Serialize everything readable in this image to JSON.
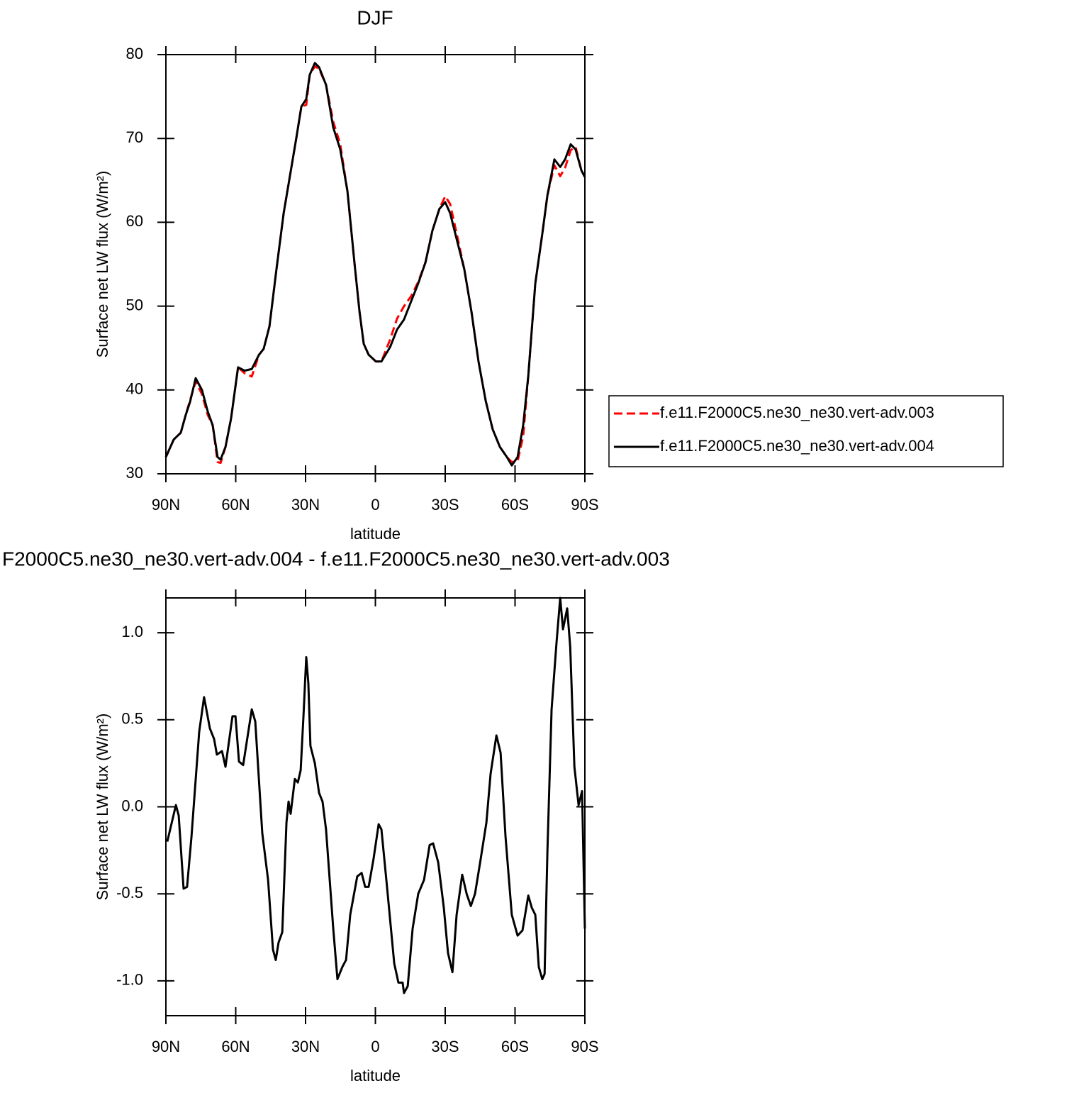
{
  "chart_data": [
    {
      "type": "line",
      "title": "DJF",
      "xlabel": "latitude",
      "ylabel": "Surface net LW flux (W/m²)",
      "x": [
        90,
        86.6,
        83.6,
        81.5,
        79.6,
        77.2,
        74.5,
        72,
        69.9,
        67.8,
        66.5,
        64.4,
        62,
        59,
        56.2,
        53.1,
        50,
        48,
        45.5,
        42.5,
        39.4,
        36.3,
        34,
        31.8,
        29.7,
        28.2,
        26,
        24.2,
        21.2,
        18.1,
        15.1,
        12,
        9,
        6.8,
        5,
        2.9,
        -0.2,
        -2.6,
        -6.3,
        -9.3,
        -12.3,
        -15.4,
        -18.4,
        -21.5,
        -24.5,
        -27.5,
        -30,
        -32.1,
        -35.2,
        -38.2,
        -41.3,
        -44.3,
        -47.4,
        -50.4,
        -53.5,
        -56.5,
        -58.6,
        -61.1,
        -63.5,
        -65.7,
        -68.7,
        -71.7,
        -73.9,
        -76.9,
        -79.4,
        -81.5,
        -83.9,
        -86,
        -88.5,
        -90
      ],
      "series": [
        {
          "name": "f.e11.F2000C5.ne30_ne30.vert-adv.003",
          "color": "#ff0000",
          "linestyle": "dashed",
          "values": [
            32.0,
            34.1,
            34.9,
            37.0,
            38.8,
            41.0,
            39.5,
            37.0,
            35.8,
            31.4,
            31.3,
            33.2,
            36.6,
            42.7,
            42.0,
            41.6,
            44.2,
            44.9,
            47.6,
            54.4,
            61.1,
            66.2,
            70.0,
            73.8,
            74.0,
            77.6,
            78.6,
            78.3,
            76.4,
            72.0,
            69.3,
            63.7,
            55.2,
            49.3,
            45.5,
            44.2,
            43.4,
            43.4,
            46.0,
            48.5,
            50.0,
            51.2,
            52.9,
            55.2,
            59.0,
            61.6,
            63.1,
            62.2,
            58.3,
            54.4,
            49.3,
            43.4,
            38.7,
            35.3,
            33.2,
            32.0,
            31.4,
            31.5,
            34.5,
            41.7,
            52.7,
            58.6,
            63.2,
            66.8,
            65.5,
            66.5,
            68.6,
            69.0,
            66.2,
            65.4
          ]
        },
        {
          "name": "f.e11.F2000C5.ne30_ne30.vert-adv.004",
          "color": "#000000",
          "linestyle": "solid",
          "values": [
            32.0,
            34.1,
            34.9,
            37.0,
            38.6,
            41.4,
            40.0,
            37.4,
            35.8,
            32.0,
            31.7,
            33.2,
            36.6,
            42.7,
            42.3,
            42.5,
            44.2,
            44.9,
            47.6,
            54.4,
            61.1,
            66.2,
            70.0,
            73.8,
            74.7,
            77.6,
            79.0,
            78.5,
            76.4,
            71.3,
            68.7,
            63.7,
            55.2,
            49.3,
            45.5,
            44.2,
            43.4,
            43.4,
            45.1,
            47.2,
            48.4,
            50.6,
            52.7,
            55.2,
            59.0,
            61.6,
            62.4,
            61.1,
            57.7,
            54.4,
            49.3,
            43.4,
            38.7,
            35.3,
            33.2,
            32.0,
            31.0,
            32.0,
            35.8,
            41.7,
            52.7,
            58.6,
            63.2,
            67.5,
            66.6,
            67.5,
            69.3,
            68.7,
            66.2,
            65.4
          ]
        }
      ],
      "xlim": [
        90,
        -90
      ],
      "xticks": [
        {
          "value": 90,
          "label": "90N"
        },
        {
          "value": 60,
          "label": "60N"
        },
        {
          "value": 30,
          "label": "30N"
        },
        0,
        {
          "value": -30,
          "label": "30S"
        },
        {
          "value": -60,
          "label": "60S"
        },
        {
          "value": -90,
          "label": "90S"
        }
      ],
      "ylim": [
        30,
        80
      ],
      "yticks": [
        30,
        40,
        50,
        60,
        70,
        80
      ],
      "legend": "right"
    },
    {
      "type": "line",
      "title": "F2000C5.ne30_ne30.vert-adv.004 - f.e11.F2000C5.ne30_ne30.vert-adv.003",
      "xlabel": "latitude",
      "ylabel": "Surface net LW flux (W/m²)",
      "x": [
        89.4,
        85.7,
        84.5,
        82.4,
        80.9,
        79,
        75.7,
        73.6,
        71.1,
        69.3,
        68.1,
        65.9,
        64.4,
        61.4,
        60.1,
        58.6,
        56.8,
        53.1,
        51.6,
        48.6,
        46.1,
        44,
        42.8,
        41.6,
        40,
        38.2,
        37.3,
        36.4,
        34.6,
        33.3,
        32.1,
        30.9,
        29.7,
        28.8,
        27.9,
        26,
        24.2,
        22.7,
        21.2,
        18.1,
        16.3,
        14.2,
        12.6,
        10.8,
        7.8,
        5.9,
        4.4,
        2.9,
        0.8,
        -1.4,
        -2.6,
        -5,
        -8.1,
        -9.9,
        -11.7,
        -12.3,
        -13.9,
        -16,
        -18.4,
        -20.9,
        -23.3,
        -24.8,
        -27,
        -29.4,
        -31.2,
        -33.1,
        -34.9,
        -37.3,
        -39.2,
        -41,
        -42.8,
        -45,
        -47.7,
        -49.5,
        -52,
        -53.8,
        -55.9,
        -58.6,
        -61.1,
        -63.2,
        -65.7,
        -67.2,
        -68.7,
        -70.2,
        -71.7,
        -72.7,
        -73.9,
        -75.7,
        -77.8,
        -79.4,
        -80.6,
        -82.4,
        -83.7,
        -85.5,
        -87.3,
        -88.8,
        -90
      ],
      "values": [
        -0.2,
        0.01,
        -0.05,
        -0.47,
        -0.46,
        -0.17,
        0.43,
        0.63,
        0.45,
        0.39,
        0.3,
        0.32,
        0.23,
        0.52,
        0.52,
        0.26,
        0.24,
        0.56,
        0.49,
        -0.15,
        -0.42,
        -0.82,
        -0.88,
        -0.78,
        -0.72,
        -0.09,
        0.03,
        -0.04,
        0.16,
        0.14,
        0.21,
        0.52,
        0.86,
        0.71,
        0.35,
        0.25,
        0.08,
        0.03,
        -0.13,
        -0.7,
        -0.99,
        -0.92,
        -0.88,
        -0.62,
        -0.4,
        -0.38,
        -0.46,
        -0.46,
        -0.3,
        -0.1,
        -0.13,
        -0.46,
        -0.9,
        -1.01,
        -1.01,
        -1.07,
        -1.03,
        -0.7,
        -0.5,
        -0.42,
        -0.22,
        -0.21,
        -0.32,
        -0.58,
        -0.84,
        -0.95,
        -0.62,
        -0.39,
        -0.5,
        -0.57,
        -0.5,
        -0.32,
        -0.09,
        0.19,
        0.41,
        0.31,
        -0.17,
        -0.62,
        -0.74,
        -0.71,
        -0.51,
        -0.58,
        -0.62,
        -0.92,
        -0.99,
        -0.96,
        -0.26,
        0.56,
        0.94,
        1.2,
        1.02,
        1.14,
        0.92,
        0.23,
        0.01,
        0.09,
        -0.7
      ],
      "color": "#000000",
      "xlim": [
        90,
        -90
      ],
      "xticks": [
        {
          "value": 90,
          "label": "90N"
        },
        {
          "value": 60,
          "label": "60N"
        },
        {
          "value": 30,
          "label": "30N"
        },
        0,
        {
          "value": -30,
          "label": "30S"
        },
        {
          "value": -60,
          "label": "60S"
        },
        {
          "value": -90,
          "label": "90S"
        }
      ],
      "ylim": [
        -1.2,
        1.2
      ],
      "yticks": [
        {
          "value": -1.0,
          "label": "-1.0"
        },
        -0.5,
        {
          "value": 0.0,
          "label": "0.0"
        },
        0.5,
        {
          "value": 1.0,
          "label": "1.0"
        }
      ]
    }
  ]
}
